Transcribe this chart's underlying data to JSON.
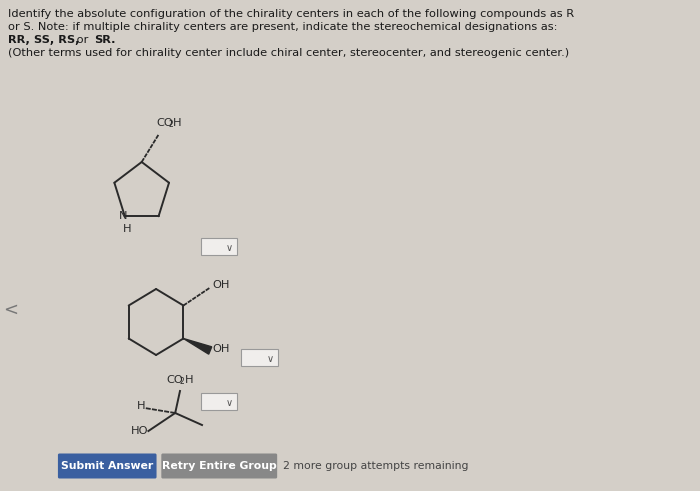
{
  "background_color": "#d4cfc8",
  "text_color": "#1a1a1a",
  "title_line1": "Identify the absolute configuration of the chirality centers in each of the following compounds as R",
  "title_line2": "or S. Note: if multiple chirality centers are present, indicate the stereochemical designations as:",
  "title_line3_normal1": "",
  "title_line3_bold": "RR, SS, RS,",
  "title_line3_normal2": " or ",
  "title_line3_bold2": "SR.",
  "title_line4": "(Other terms used for chirality center include chiral center, stereocenter, and stereogenic center.)",
  "button1_label": "Submit Answer",
  "button2_label": "Retry Entire Group",
  "footer_text": "2 more group attempts remaining",
  "button1_bg": "#3a5fa0",
  "button2_bg": "#888888",
  "button_text_color": "#ffffff",
  "fig_width": 7.0,
  "fig_height": 4.91,
  "dpi": 100,
  "ring_color": "#2a2a2a",
  "bg_light": "#e8e4de"
}
